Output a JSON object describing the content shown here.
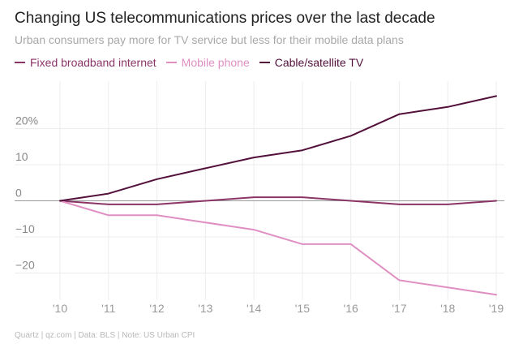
{
  "chart_data": {
    "type": "line",
    "title": "Changing US telecommunications prices over the last decade",
    "subtitle": "Urban consumers pay more for TV service but less for their mobile data plans",
    "x": [
      "'10",
      "'11",
      "'12",
      "'13",
      "'14",
      "'15",
      "'16",
      "'17",
      "'18",
      "'19"
    ],
    "xlabel": "",
    "ylabel": "",
    "ylim": [
      -26,
      30
    ],
    "yticks": [
      20,
      10,
      0,
      -10,
      -20
    ],
    "ytick_labels": [
      "20%",
      "10",
      "0",
      "−10",
      "−20"
    ],
    "grid": true,
    "legend_position": "top-left",
    "series": [
      {
        "name": "Fixed broadband internet",
        "color": "#8b3567",
        "values": [
          0,
          -1,
          -1,
          0,
          1,
          1,
          0,
          -1,
          -1,
          0
        ]
      },
      {
        "name": "Mobile phone",
        "color": "#e08fc3",
        "values": [
          0,
          -4,
          -4,
          -6,
          -8,
          -12,
          -12,
          -22,
          -24,
          -26
        ]
      },
      {
        "name": "Cable/satellite TV",
        "color": "#52103a",
        "values": [
          0,
          2,
          6,
          9,
          12,
          14,
          18,
          24,
          26,
          29
        ]
      }
    ],
    "source": "Quartz | qz.com | Data: BLS | Note: US Urban CPI"
  }
}
